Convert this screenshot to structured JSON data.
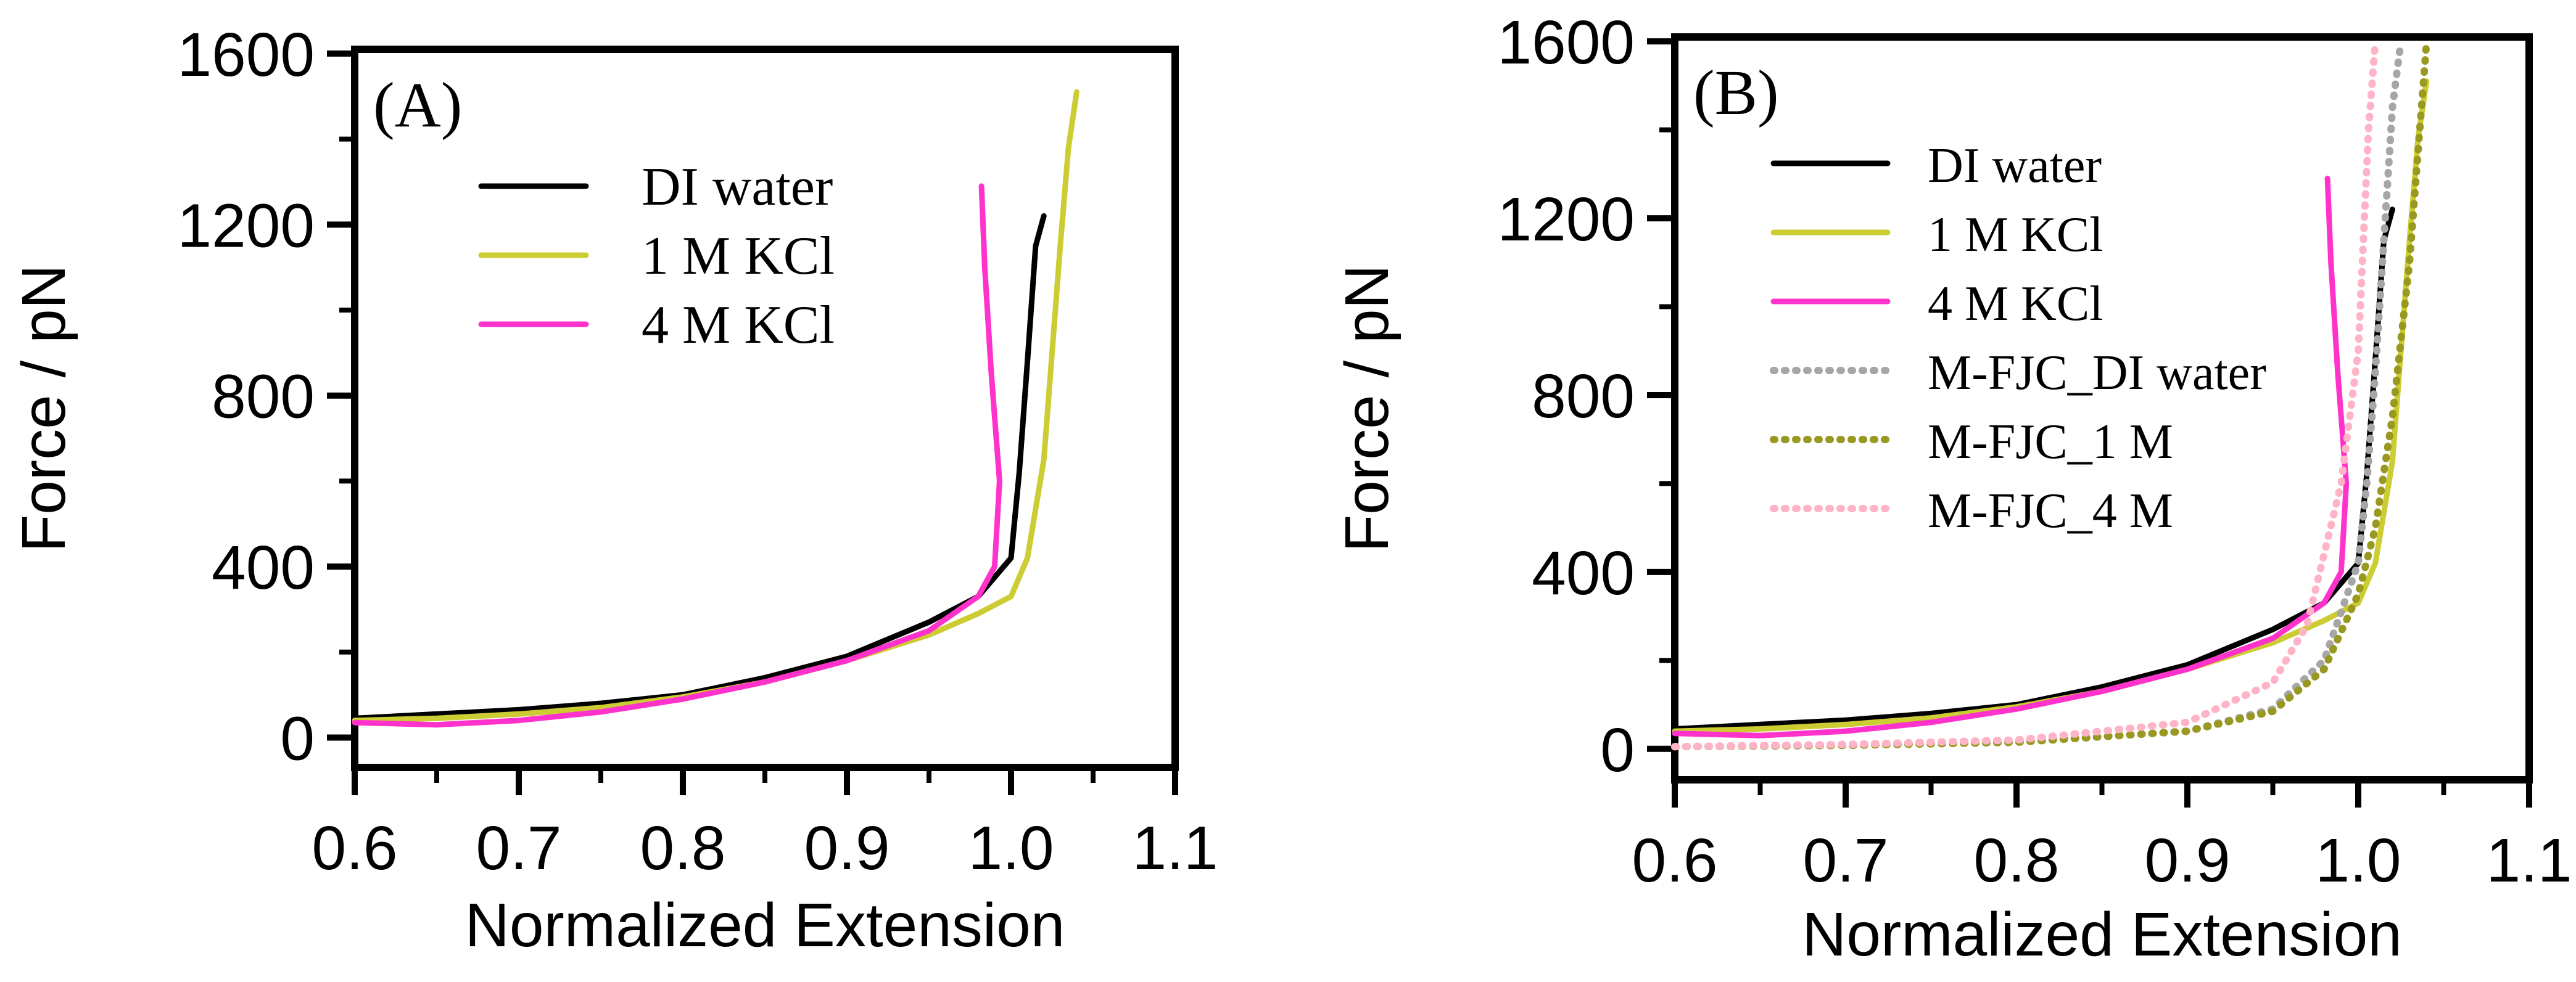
{
  "chart_data": [
    {
      "type": "line",
      "panel_label": "(A)",
      "xlabel": "Normalized Extension",
      "ylabel": "Force / pN",
      "xlim": [
        0.6,
        1.1
      ],
      "ylim": [
        -70,
        1610
      ],
      "xticks": [
        "0.6",
        "0.7",
        "0.8",
        "0.9",
        "1.0",
        "1.1"
      ],
      "yticks": [
        "0",
        "400",
        "800",
        "1200",
        "1600"
      ],
      "legend": [
        "DI water",
        "1 M KCl",
        "4 M KCl"
      ],
      "series": [
        {
          "name": "DI water",
          "color": "#000000",
          "style": "solid",
          "x": [
            0.6,
            0.65,
            0.7,
            0.75,
            0.8,
            0.85,
            0.9,
            0.95,
            0.98,
            1.0,
            1.005,
            1.01,
            1.015,
            1.02
          ],
          "y": [
            45,
            55,
            65,
            80,
            100,
            140,
            190,
            270,
            330,
            420,
            620,
            880,
            1150,
            1220
          ]
        },
        {
          "name": "1 M KCl",
          "color": "#cccc33",
          "style": "solid",
          "x": [
            0.6,
            0.65,
            0.7,
            0.75,
            0.8,
            0.85,
            0.9,
            0.95,
            0.98,
            1.0,
            1.01,
            1.02,
            1.025,
            1.03,
            1.035,
            1.04
          ],
          "y": [
            40,
            45,
            55,
            70,
            95,
            130,
            180,
            240,
            290,
            330,
            420,
            650,
            900,
            1150,
            1380,
            1510
          ]
        },
        {
          "name": "4 M KCl",
          "color": "#ff33cc",
          "style": "solid",
          "x": [
            0.6,
            0.65,
            0.7,
            0.75,
            0.8,
            0.85,
            0.9,
            0.95,
            0.98,
            0.99,
            0.993,
            0.988,
            0.984,
            0.982
          ],
          "y": [
            35,
            30,
            40,
            60,
            90,
            130,
            180,
            250,
            330,
            400,
            600,
            850,
            1100,
            1290
          ]
        }
      ]
    },
    {
      "type": "line",
      "panel_label": "(B)",
      "xlabel": "Normalized Extension",
      "ylabel": "Force / pN",
      "xlim": [
        0.6,
        1.1
      ],
      "ylim": [
        -70,
        1610
      ],
      "xticks": [
        "0.6",
        "0.7",
        "0.8",
        "0.9",
        "1.0",
        "1.1"
      ],
      "yticks": [
        "0",
        "400",
        "800",
        "1200",
        "1600"
      ],
      "legend": [
        "DI water",
        "1 M KCl",
        "4 M KCl",
        "M-FJC_DI water",
        "M-FJC_1 M",
        "M-FJC_4 M"
      ],
      "series": [
        {
          "name": "DI water",
          "color": "#000000",
          "style": "solid",
          "x": [
            0.6,
            0.65,
            0.7,
            0.75,
            0.8,
            0.85,
            0.9,
            0.95,
            0.98,
            1.0,
            1.005,
            1.01,
            1.015,
            1.02
          ],
          "y": [
            45,
            55,
            65,
            80,
            100,
            140,
            190,
            270,
            330,
            420,
            620,
            880,
            1150,
            1220
          ]
        },
        {
          "name": "1 M KCl",
          "color": "#cccc33",
          "style": "solid",
          "x": [
            0.6,
            0.65,
            0.7,
            0.75,
            0.8,
            0.85,
            0.9,
            0.95,
            0.98,
            1.0,
            1.01,
            1.02,
            1.025,
            1.03,
            1.035,
            1.04
          ],
          "y": [
            40,
            45,
            55,
            70,
            95,
            130,
            180,
            240,
            290,
            330,
            420,
            650,
            900,
            1150,
            1380,
            1510
          ]
        },
        {
          "name": "4 M KCl",
          "color": "#ff33cc",
          "style": "solid",
          "x": [
            0.6,
            0.65,
            0.7,
            0.75,
            0.8,
            0.85,
            0.9,
            0.95,
            0.98,
            0.99,
            0.993,
            0.988,
            0.984,
            0.982
          ],
          "y": [
            35,
            30,
            40,
            60,
            90,
            130,
            180,
            250,
            330,
            400,
            600,
            850,
            1100,
            1290
          ]
        },
        {
          "name": "M-FJC_DI water",
          "color": "#a6a6a6",
          "style": "dotted",
          "x": [
            0.6,
            0.7,
            0.8,
            0.9,
            0.95,
            0.98,
            1.0,
            1.005,
            1.01,
            1.015,
            1.02,
            1.025
          ],
          "y": [
            5,
            8,
            15,
            40,
            90,
            200,
            420,
            600,
            850,
            1150,
            1450,
            1600
          ]
        },
        {
          "name": "M-FJC_1 M",
          "color": "#999922",
          "style": "dotted",
          "x": [
            0.6,
            0.7,
            0.8,
            0.9,
            0.95,
            0.98,
            1.0,
            1.01,
            1.02,
            1.03,
            1.035,
            1.04
          ],
          "y": [
            5,
            8,
            15,
            40,
            85,
            180,
            350,
            500,
            750,
            1100,
            1350,
            1600
          ]
        },
        {
          "name": "M-FJC_4 M",
          "color": "#ffb3c6",
          "style": "dotted",
          "x": [
            0.6,
            0.7,
            0.8,
            0.9,
            0.95,
            0.97,
            0.99,
            1.0,
            1.003,
            1.006,
            1.01
          ],
          "y": [
            5,
            10,
            20,
            60,
            150,
            280,
            600,
            900,
            1150,
            1400,
            1600
          ]
        }
      ]
    }
  ]
}
